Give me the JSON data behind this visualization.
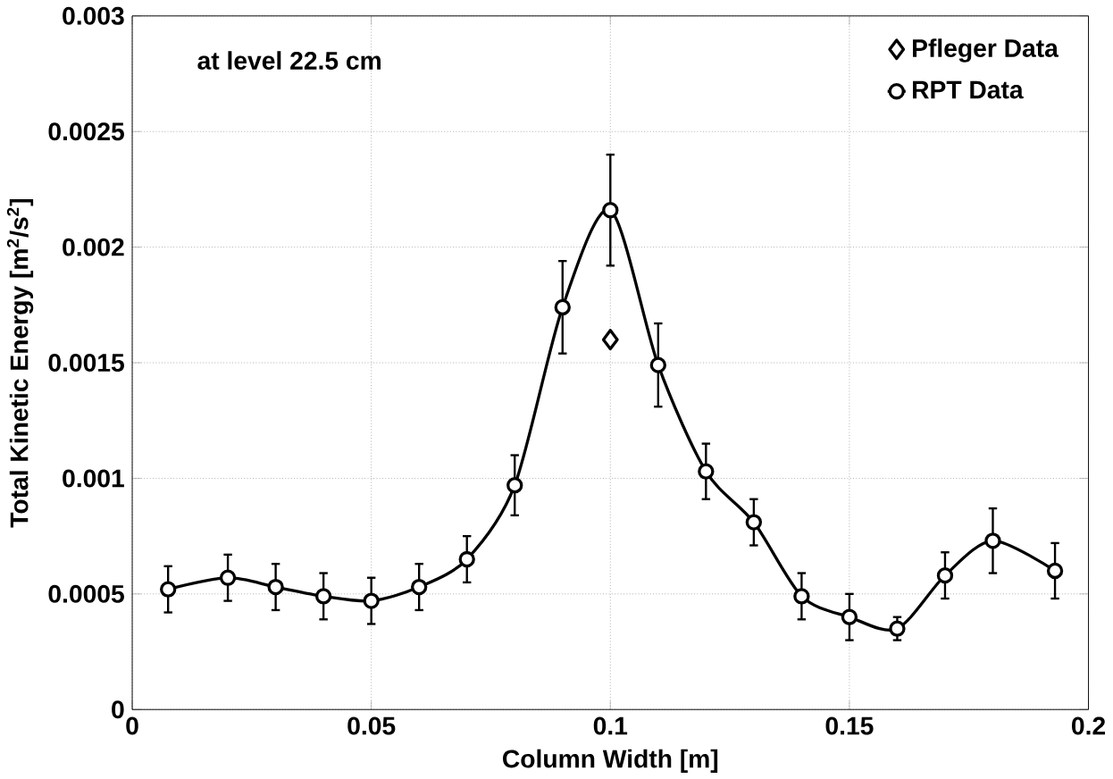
{
  "chart_data": {
    "type": "line",
    "xlabel": "Column Width [m]",
    "ylabel": "Total Kinetic Energy [m$^{2}$/s$^{2}$]",
    "annotations": [
      "at level 22.5 cm"
    ],
    "xlim": [
      0,
      0.2
    ],
    "xticks": [
      0,
      0.05,
      0.1,
      0.15,
      0.2
    ],
    "ylim": [
      0,
      0.003
    ],
    "yticks": [
      0,
      0.0005,
      0.001,
      0.0015,
      0.002,
      0.0025,
      0.003
    ],
    "grid": true,
    "legend": "top right",
    "series": [
      {
        "name": "Pfleger Data",
        "type": "scatter",
        "marker": "diamond",
        "color": "#000000",
        "x": [
          0.1
        ],
        "values": [
          0.0016
        ]
      },
      {
        "name": "RPT Data",
        "marker": "circle",
        "color": "#000000",
        "x": [
          0.0075,
          0.02,
          0.03,
          0.04,
          0.05,
          0.06,
          0.07,
          0.08,
          0.09,
          0.1,
          0.11,
          0.12,
          0.13,
          0.14,
          0.15,
          0.16,
          0.17,
          0.18,
          0.193
        ],
        "values": [
          0.00052,
          0.00057,
          0.00053,
          0.00049,
          0.00047,
          0.00053,
          0.00065,
          0.00097,
          0.00174,
          0.00216,
          0.00149,
          0.00103,
          0.00081,
          0.00049,
          0.0004,
          0.00035,
          0.00058,
          0.00073,
          0.0006
        ],
        "errors": [
          0.0001,
          0.0001,
          0.0001,
          0.0001,
          0.0001,
          0.0001,
          0.0001,
          0.00013,
          0.0002,
          0.00024,
          0.00018,
          0.00012,
          0.0001,
          0.0001,
          0.0001,
          5e-05,
          0.0001,
          0.00014,
          0.00012
        ]
      }
    ]
  }
}
